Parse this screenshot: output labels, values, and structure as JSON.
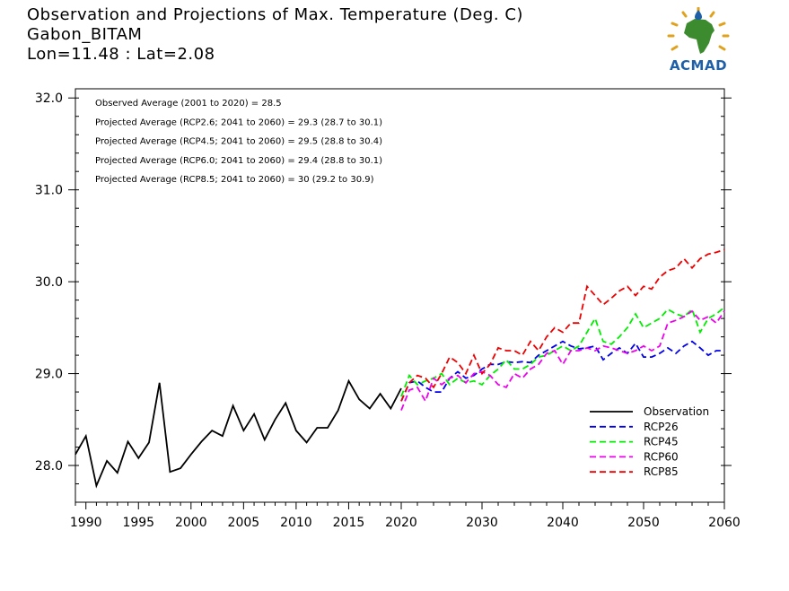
{
  "title": {
    "line1": "Observation and Projections of Max. Temperature (Deg. C)",
    "line2": "Gabon_BITAM",
    "line3": "Lon=11.48 : Lat=2.08"
  },
  "logo": {
    "text": "ACMAD",
    "icon": "africa-sun-logo-icon"
  },
  "colors": {
    "observation": "#000000",
    "rcp26": "#0000ee",
    "rcp45": "#00ee00",
    "rcp60": "#ee00ee",
    "rcp85": "#ee0000"
  },
  "chart_data": {
    "type": "line",
    "title": "Observation and Projections of Max. Temperature (Deg. C)",
    "xlabel": "",
    "ylabel": "",
    "ylim": [
      27.6,
      32.1
    ],
    "grid": false,
    "legend_position": "bottom-right",
    "x_ticks_left": [
      1990,
      1995,
      2000,
      2005,
      2010,
      2015,
      2020
    ],
    "x_ticks_right": [
      2030,
      2040,
      2050,
      2060
    ],
    "y_ticks": [
      "28.0",
      "29.0",
      "30.0",
      "31.0",
      "32.0"
    ],
    "annotations": [
      "Observed Average (2001 to 2020) = 28.5",
      "Projected Average (RCP2.6; 2041 to 2060) = 29.3 (28.7 to 30.1)",
      "Projected Average (RCP4.5; 2041 to 2060) = 29.5 (28.8 to 30.4)",
      "Projected Average (RCP6.0; 2041 to 2060) = 29.4 (28.8 to 30.1)",
      "Projected Average (RCP8.5; 2041 to 2060) = 30 (29.2 to 30.9)"
    ],
    "series": [
      {
        "name": "Observation",
        "key": "observation",
        "dashed": false,
        "x": [
          1989,
          1990,
          1991,
          1992,
          1993,
          1994,
          1995,
          1996,
          1997,
          1998,
          1999,
          2000,
          2001,
          2002,
          2003,
          2004,
          2005,
          2006,
          2007,
          2008,
          2009,
          2010,
          2011,
          2012,
          2013,
          2014,
          2015,
          2016,
          2017,
          2018,
          2019,
          2020
        ],
        "values": [
          28.12,
          28.32,
          27.78,
          28.05,
          27.92,
          28.26,
          28.08,
          28.25,
          28.9,
          27.93,
          27.97,
          28.12,
          28.26,
          28.38,
          28.32,
          28.65,
          28.38,
          28.56,
          28.28,
          28.5,
          28.68,
          28.38,
          28.25,
          28.41,
          28.41,
          28.6,
          28.92,
          28.72,
          28.62,
          28.78,
          28.62,
          28.84
        ]
      },
      {
        "name": "RCP26",
        "key": "rcp26",
        "dashed": true,
        "x": [
          2020,
          2021,
          2022,
          2023,
          2024,
          2025,
          2026,
          2027,
          2028,
          2029,
          2030,
          2031,
          2032,
          2033,
          2034,
          2035,
          2036,
          2037,
          2038,
          2039,
          2040,
          2041,
          2042,
          2043,
          2044,
          2045,
          2046,
          2047,
          2048,
          2049,
          2050,
          2051,
          2052,
          2053,
          2054,
          2055,
          2056,
          2057,
          2058,
          2059,
          2060
        ],
        "values": [
          28.7,
          28.9,
          28.92,
          28.85,
          28.8,
          28.8,
          28.95,
          29.02,
          28.95,
          28.98,
          29.05,
          29.1,
          29.1,
          29.13,
          29.12,
          29.13,
          29.12,
          29.2,
          29.25,
          29.3,
          29.35,
          29.3,
          29.27,
          29.28,
          29.3,
          29.15,
          29.22,
          29.28,
          29.22,
          29.33,
          29.18,
          29.18,
          29.22,
          29.28,
          29.22,
          29.3,
          29.35,
          29.28,
          29.2,
          29.25,
          29.25
        ]
      },
      {
        "name": "RCP45",
        "key": "rcp45",
        "dashed": true,
        "x": [
          2020,
          2021,
          2022,
          2023,
          2024,
          2025,
          2026,
          2027,
          2028,
          2029,
          2030,
          2031,
          2032,
          2033,
          2034,
          2035,
          2036,
          2037,
          2038,
          2039,
          2040,
          2041,
          2042,
          2043,
          2044,
          2045,
          2046,
          2047,
          2048,
          2049,
          2050,
          2051,
          2052,
          2053,
          2054,
          2055,
          2056,
          2057,
          2058,
          2059,
          2060
        ],
        "values": [
          28.75,
          28.98,
          28.88,
          28.92,
          28.95,
          29.0,
          28.88,
          28.95,
          28.9,
          28.92,
          28.88,
          28.98,
          29.05,
          29.15,
          29.05,
          29.05,
          29.1,
          29.18,
          29.2,
          29.25,
          29.3,
          29.25,
          29.3,
          29.45,
          29.6,
          29.35,
          29.32,
          29.4,
          29.5,
          29.65,
          29.5,
          29.55,
          29.6,
          29.7,
          29.65,
          29.62,
          29.7,
          29.45,
          29.6,
          29.65,
          29.72
        ]
      },
      {
        "name": "RCP60",
        "key": "rcp60",
        "dashed": true,
        "x": [
          2020,
          2021,
          2022,
          2023,
          2024,
          2025,
          2026,
          2027,
          2028,
          2029,
          2030,
          2031,
          2032,
          2033,
          2034,
          2035,
          2036,
          2037,
          2038,
          2039,
          2040,
          2041,
          2042,
          2043,
          2044,
          2045,
          2046,
          2047,
          2048,
          2049,
          2050,
          2051,
          2052,
          2053,
          2054,
          2055,
          2056,
          2057,
          2058,
          2059,
          2060
        ],
        "values": [
          28.6,
          28.82,
          28.85,
          28.7,
          28.95,
          28.88,
          28.95,
          28.98,
          28.9,
          29.0,
          29.02,
          28.98,
          28.88,
          28.85,
          29.0,
          28.95,
          29.05,
          29.1,
          29.22,
          29.25,
          29.1,
          29.25,
          29.25,
          29.28,
          29.25,
          29.3,
          29.28,
          29.25,
          29.22,
          29.25,
          29.3,
          29.25,
          29.3,
          29.55,
          29.58,
          29.62,
          29.68,
          29.58,
          29.62,
          29.55,
          29.68
        ]
      },
      {
        "name": "RCP85",
        "key": "rcp85",
        "dashed": true,
        "x": [
          2020,
          2021,
          2022,
          2023,
          2024,
          2025,
          2026,
          2027,
          2028,
          2029,
          2030,
          2031,
          2032,
          2033,
          2034,
          2035,
          2036,
          2037,
          2038,
          2039,
          2040,
          2041,
          2042,
          2043,
          2044,
          2045,
          2046,
          2047,
          2048,
          2049,
          2050,
          2051,
          2052,
          2053,
          2054,
          2055,
          2056,
          2057,
          2058,
          2059,
          2060
        ],
        "values": [
          28.7,
          28.9,
          28.98,
          28.95,
          28.85,
          29.0,
          29.18,
          29.12,
          29.0,
          29.2,
          29.0,
          29.1,
          29.28,
          29.25,
          29.25,
          29.2,
          29.35,
          29.25,
          29.4,
          29.5,
          29.45,
          29.55,
          29.55,
          29.95,
          29.85,
          29.75,
          29.82,
          29.9,
          29.95,
          29.85,
          29.95,
          29.92,
          30.05,
          30.12,
          30.15,
          30.25,
          30.15,
          30.25,
          30.3,
          30.32,
          30.35
        ]
      }
    ]
  }
}
